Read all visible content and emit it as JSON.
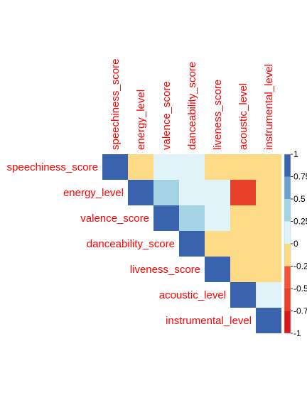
{
  "chart_data": {
    "type": "heatmap",
    "variant": "correlation-matrix-upper-triangle",
    "variables": [
      "speechiness_score",
      "energy_level",
      "valence_score",
      "danceability_score",
      "liveness_score",
      "acoustic_level",
      "instrumental_level"
    ],
    "matrix": [
      [
        1.0,
        -0.1,
        0.1,
        0.1,
        -0.1,
        -0.1,
        -0.1
      ],
      [
        -0.1,
        1.0,
        0.4,
        0.1,
        0.1,
        -0.7,
        -0.1
      ],
      [
        0.1,
        0.4,
        1.0,
        0.4,
        0.1,
        -0.1,
        -0.1
      ],
      [
        0.1,
        0.1,
        0.4,
        1.0,
        -0.1,
        -0.1,
        -0.1
      ],
      [
        -0.1,
        0.1,
        0.1,
        -0.1,
        1.0,
        -0.1,
        -0.1
      ],
      [
        -0.1,
        -0.7,
        -0.1,
        -0.1,
        -0.1,
        1.0,
        0.1
      ],
      [
        -0.1,
        -0.1,
        -0.1,
        -0.1,
        -0.1,
        0.1,
        1.0
      ]
    ],
    "color_scale": {
      "range": [
        -1,
        1
      ],
      "bins": [
        {
          "from": -1.0,
          "to": -0.75,
          "color": "#D7191C"
        },
        {
          "from": -0.75,
          "to": -0.5,
          "color": "#E8412A"
        },
        {
          "from": -0.5,
          "to": -0.25,
          "color": "#F0553A"
        },
        {
          "from": -0.25,
          "to": 0.0,
          "color": "#FDDA86"
        },
        {
          "from": 0.0,
          "to": 0.25,
          "color": "#E0F3F8"
        },
        {
          "from": 0.25,
          "to": 0.5,
          "color": "#A4D4E4"
        },
        {
          "from": 0.5,
          "to": 0.75,
          "color": "#6A9FCB"
        },
        {
          "from": 0.75,
          "to": 1.0,
          "color": "#3A63AD"
        }
      ],
      "legend_ticks": [
        "1",
        "0.75",
        "0.5",
        "0.25",
        "0",
        "-0.25",
        "-0.5",
        "-0.75",
        "-1"
      ],
      "legend_position": "right"
    },
    "label_color": "#FF0000",
    "grid": false
  }
}
